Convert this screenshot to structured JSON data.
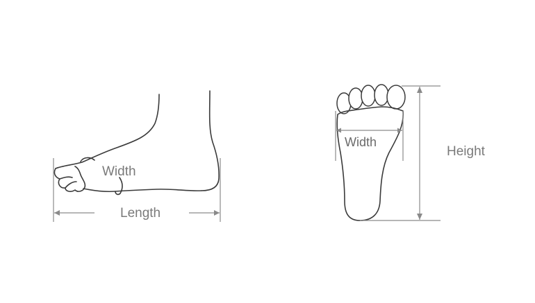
{
  "side_view": {
    "width_label": "Width",
    "length_label": "Length"
  },
  "sole_view": {
    "width_label": "Width",
    "height_label": "Height"
  },
  "colors": {
    "outline": "#3a3a3a",
    "dimension_line": "#8a8a8a",
    "label_text": "#7a7a7a",
    "background": "#ffffff"
  }
}
